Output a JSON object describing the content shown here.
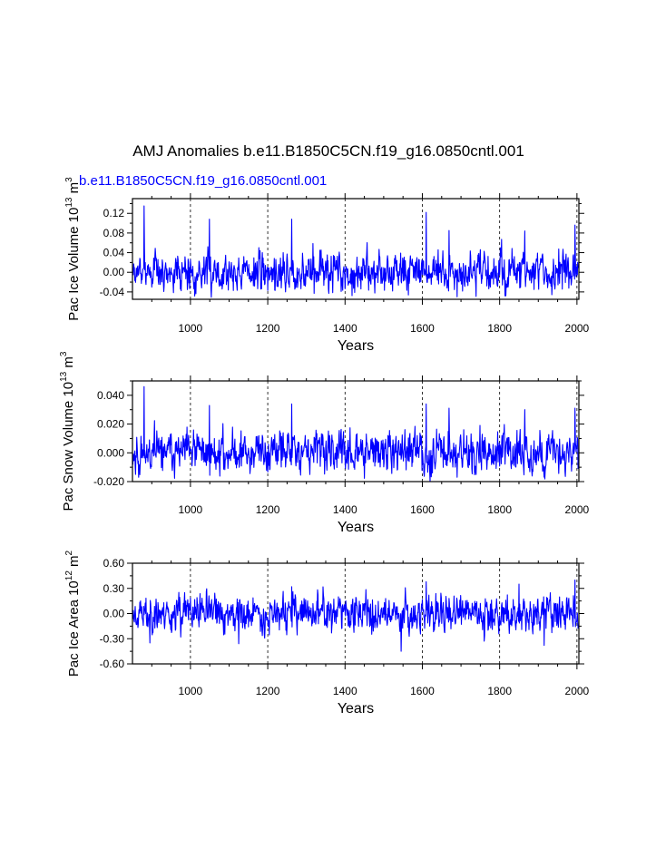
{
  "title": "AMJ Anomalies b.e11.B1850C5CN.f19_g16.0850cntl.001",
  "series_label": "b.e11.B1850C5CN.f19_g16.0850cntl.001",
  "series_color": "#0000ff",
  "grid_color": "#000000",
  "chart_data": [
    {
      "type": "line",
      "ylabel": "Pac Ice Volume 10",
      "ylabel_exp": "13",
      "ylabel_unit": " m",
      "ylabel_unit_exp": "3",
      "xlabel": "Years",
      "xlim": [
        850,
        2005
      ],
      "ylim": [
        -0.055,
        0.15
      ],
      "xticks": [
        1000,
        1200,
        1400,
        1600,
        1800,
        2000
      ],
      "xtick_labels": [
        "1000",
        "1200",
        "1400",
        "1600",
        "1800",
        "2000"
      ],
      "yticks": [
        -0.04,
        0.0,
        0.04,
        0.08,
        0.12
      ],
      "ytick_labels": [
        "-0.04",
        "0.00",
        "0.04",
        "0.08",
        "0.12"
      ],
      "grid_x": [
        1000,
        1200,
        1400,
        1600,
        1800,
        2000
      ],
      "amp": 0.018,
      "spikes": [
        [
          880,
          0.135
        ],
        [
          1049,
          0.108
        ],
        [
          1262,
          0.108
        ],
        [
          1610,
          0.122
        ],
        [
          1669,
          0.085
        ],
        [
          1865,
          0.084
        ],
        [
          1995,
          0.096
        ],
        [
          1690,
          -0.05
        ],
        [
          1320,
          -0.043
        ]
      ],
      "seed": 7
    },
    {
      "type": "line",
      "ylabel": "Pac Snow Volume 10",
      "ylabel_exp": "13",
      "ylabel_unit": " m",
      "ylabel_unit_exp": "3",
      "xlabel": "Years",
      "xlim": [
        850,
        2005
      ],
      "ylim": [
        -0.02,
        0.05
      ],
      "xticks": [
        1000,
        1200,
        1400,
        1600,
        1800,
        2000
      ],
      "xtick_labels": [
        "1000",
        "1200",
        "1400",
        "1600",
        "1800",
        "2000"
      ],
      "yticks": [
        -0.02,
        0.0,
        0.02,
        0.04
      ],
      "ytick_labels": [
        "-0.020",
        "0.000",
        "0.020",
        "0.040"
      ],
      "grid_x": [
        1000,
        1200,
        1400,
        1600,
        1800,
        2000
      ],
      "amp": 0.0065,
      "spikes": [
        [
          880,
          0.046
        ],
        [
          1049,
          0.033
        ],
        [
          1262,
          0.034
        ],
        [
          1610,
          0.034
        ],
        [
          1669,
          0.031
        ],
        [
          1865,
          0.03
        ],
        [
          1995,
          0.031
        ],
        [
          1690,
          -0.017
        ],
        [
          858,
          -0.015
        ]
      ],
      "seed": 11
    },
    {
      "type": "line",
      "ylabel": "Pac Ice Area 10",
      "ylabel_exp": "12",
      "ylabel_unit": " m",
      "ylabel_unit_exp": "2",
      "xlabel": "Years",
      "xlim": [
        850,
        2005
      ],
      "ylim": [
        -0.6,
        0.6
      ],
      "xticks": [
        1000,
        1200,
        1400,
        1600,
        1800,
        2000
      ],
      "xtick_labels": [
        "1000",
        "1200",
        "1400",
        "1600",
        "1800",
        "2000"
      ],
      "yticks": [
        -0.6,
        -0.3,
        0.0,
        0.3,
        0.6
      ],
      "ytick_labels": [
        "-0.60",
        "-0.30",
        "0.00",
        "0.30",
        "0.60"
      ],
      "grid_x": [
        1000,
        1200,
        1400,
        1600,
        1800,
        2000
      ],
      "amp": 0.1,
      "spikes": [
        [
          1995,
          0.4
        ],
        [
          1610,
          0.38
        ],
        [
          1262,
          0.32
        ],
        [
          1850,
          0.35
        ],
        [
          1545,
          -0.45
        ],
        [
          1915,
          -0.38
        ],
        [
          1125,
          -0.36
        ],
        [
          895,
          -0.35
        ],
        [
          1760,
          -0.33
        ]
      ],
      "seed": 23
    }
  ]
}
